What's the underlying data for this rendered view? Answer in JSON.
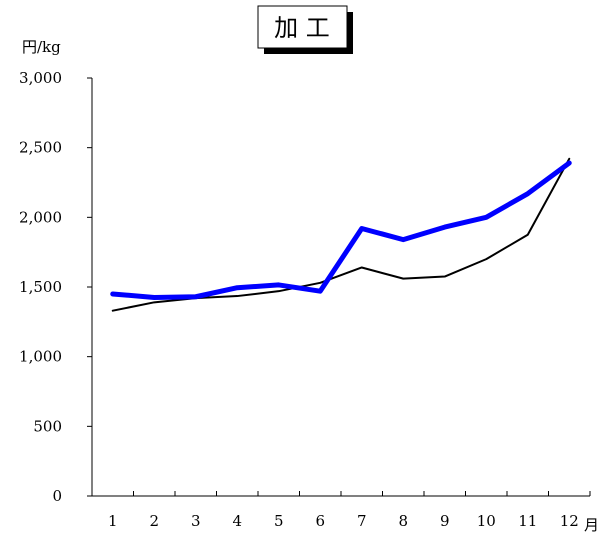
{
  "chart_data": {
    "type": "line",
    "title": "加 工",
    "ylabel": "円/kg",
    "xlabel": "月",
    "ylim": [
      0,
      3000
    ],
    "y_ticks": [
      0,
      500,
      1000,
      1500,
      2000,
      2500,
      3000
    ],
    "y_tick_labels": [
      "0",
      "500",
      "1,000",
      "1,500",
      "2,000",
      "2,500",
      "3,000"
    ],
    "categories": [
      "1",
      "2",
      "3",
      "4",
      "5",
      "6",
      "7",
      "8",
      "9",
      "10",
      "11",
      "12"
    ],
    "grid": false,
    "series": [
      {
        "color": "#0000ff",
        "values": [
          1450,
          1425,
          1430,
          1495,
          1515,
          1470,
          1920,
          1840,
          1930,
          2000,
          2170,
          2390
        ]
      },
      {
        "color": "#000000",
        "values": [
          1330,
          1390,
          1420,
          1435,
          1470,
          1530,
          1640,
          1560,
          1575,
          1700,
          1875,
          2420
        ]
      }
    ]
  }
}
